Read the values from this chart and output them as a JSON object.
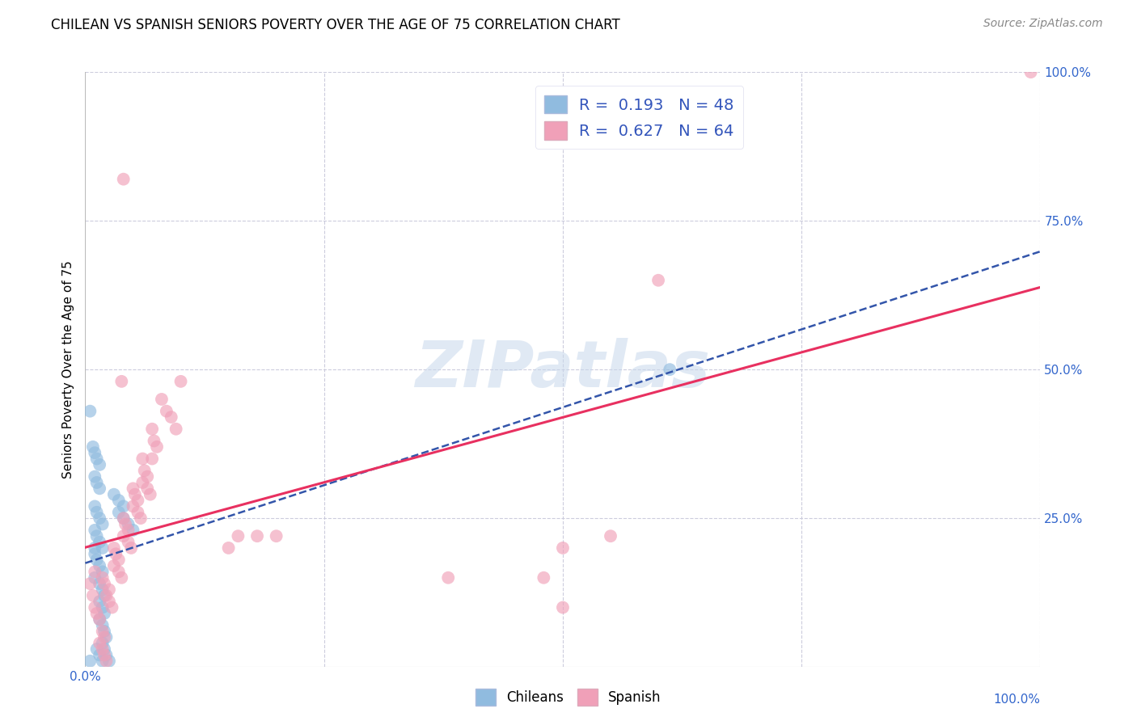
{
  "title": "CHILEAN VS SPANISH SENIORS POVERTY OVER THE AGE OF 75 CORRELATION CHART",
  "source": "Source: ZipAtlas.com",
  "ylabel": "Seniors Poverty Over the Age of 75",
  "xlim": [
    0,
    1
  ],
  "ylim": [
    0,
    1
  ],
  "legend_r_chileans": "R =  0.193",
  "legend_n_chileans": "N = 48",
  "legend_r_spanish": "R =  0.627",
  "legend_n_spanish": "N = 64",
  "chileans_color": "#90bbdf",
  "spanish_color": "#f0a0b8",
  "chileans_line_color": "#3355aa",
  "spanish_line_color": "#e83060",
  "background_color": "#ffffff",
  "grid_color": "#ccccdd",
  "watermark_text": "ZIPatlas",
  "watermark_color": "#c8d8ec",
  "chileans_points": [
    [
      0.005,
      0.43
    ],
    [
      0.008,
      0.37
    ],
    [
      0.01,
      0.36
    ],
    [
      0.012,
      0.35
    ],
    [
      0.015,
      0.34
    ],
    [
      0.01,
      0.32
    ],
    [
      0.012,
      0.31
    ],
    [
      0.015,
      0.3
    ],
    [
      0.01,
      0.27
    ],
    [
      0.012,
      0.26
    ],
    [
      0.015,
      0.25
    ],
    [
      0.018,
      0.24
    ],
    [
      0.01,
      0.23
    ],
    [
      0.012,
      0.22
    ],
    [
      0.015,
      0.21
    ],
    [
      0.018,
      0.2
    ],
    [
      0.01,
      0.19
    ],
    [
      0.012,
      0.18
    ],
    [
      0.015,
      0.17
    ],
    [
      0.018,
      0.16
    ],
    [
      0.01,
      0.15
    ],
    [
      0.015,
      0.14
    ],
    [
      0.018,
      0.13
    ],
    [
      0.02,
      0.12
    ],
    [
      0.015,
      0.11
    ],
    [
      0.018,
      0.1
    ],
    [
      0.02,
      0.09
    ],
    [
      0.015,
      0.08
    ],
    [
      0.018,
      0.07
    ],
    [
      0.02,
      0.06
    ],
    [
      0.022,
      0.05
    ],
    [
      0.018,
      0.04
    ],
    [
      0.02,
      0.03
    ],
    [
      0.022,
      0.02
    ],
    [
      0.025,
      0.01
    ],
    [
      0.018,
      0.01
    ],
    [
      0.015,
      0.02
    ],
    [
      0.012,
      0.03
    ],
    [
      0.03,
      0.29
    ],
    [
      0.035,
      0.28
    ],
    [
      0.04,
      0.27
    ],
    [
      0.035,
      0.26
    ],
    [
      0.04,
      0.25
    ],
    [
      0.045,
      0.24
    ],
    [
      0.05,
      0.23
    ],
    [
      0.01,
      0.2
    ],
    [
      0.612,
      0.5
    ],
    [
      0.005,
      0.01
    ]
  ],
  "spanish_points": [
    [
      0.005,
      0.14
    ],
    [
      0.008,
      0.12
    ],
    [
      0.01,
      0.1
    ],
    [
      0.012,
      0.09
    ],
    [
      0.015,
      0.08
    ],
    [
      0.018,
      0.06
    ],
    [
      0.02,
      0.05
    ],
    [
      0.015,
      0.04
    ],
    [
      0.018,
      0.03
    ],
    [
      0.02,
      0.02
    ],
    [
      0.022,
      0.01
    ],
    [
      0.01,
      0.16
    ],
    [
      0.018,
      0.15
    ],
    [
      0.02,
      0.14
    ],
    [
      0.025,
      0.13
    ],
    [
      0.022,
      0.12
    ],
    [
      0.025,
      0.11
    ],
    [
      0.028,
      0.1
    ],
    [
      0.03,
      0.2
    ],
    [
      0.032,
      0.19
    ],
    [
      0.035,
      0.18
    ],
    [
      0.03,
      0.17
    ],
    [
      0.035,
      0.16
    ],
    [
      0.038,
      0.15
    ],
    [
      0.04,
      0.25
    ],
    [
      0.042,
      0.24
    ],
    [
      0.045,
      0.23
    ],
    [
      0.04,
      0.22
    ],
    [
      0.045,
      0.21
    ],
    [
      0.048,
      0.2
    ],
    [
      0.05,
      0.3
    ],
    [
      0.052,
      0.29
    ],
    [
      0.055,
      0.28
    ],
    [
      0.05,
      0.27
    ],
    [
      0.055,
      0.26
    ],
    [
      0.058,
      0.25
    ],
    [
      0.06,
      0.35
    ],
    [
      0.062,
      0.33
    ],
    [
      0.065,
      0.32
    ],
    [
      0.06,
      0.31
    ],
    [
      0.065,
      0.3
    ],
    [
      0.068,
      0.29
    ],
    [
      0.07,
      0.4
    ],
    [
      0.072,
      0.38
    ],
    [
      0.075,
      0.37
    ],
    [
      0.07,
      0.35
    ],
    [
      0.08,
      0.45
    ],
    [
      0.085,
      0.43
    ],
    [
      0.09,
      0.42
    ],
    [
      0.095,
      0.4
    ],
    [
      0.1,
      0.48
    ],
    [
      0.038,
      0.48
    ],
    [
      0.15,
      0.2
    ],
    [
      0.16,
      0.22
    ],
    [
      0.18,
      0.22
    ],
    [
      0.2,
      0.22
    ],
    [
      0.04,
      0.82
    ],
    [
      0.5,
      0.2
    ],
    [
      0.55,
      0.22
    ],
    [
      0.6,
      0.65
    ],
    [
      0.99,
      1.0
    ],
    [
      0.38,
      0.15
    ],
    [
      0.48,
      0.15
    ],
    [
      0.5,
      0.1
    ]
  ]
}
